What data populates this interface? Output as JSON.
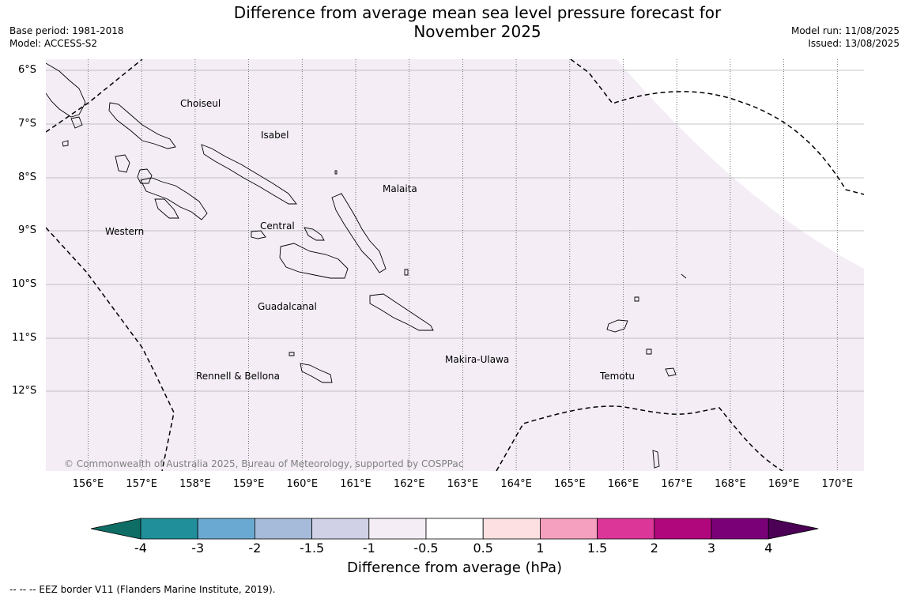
{
  "title": {
    "line1": "Difference from average mean sea level pressure forecast for",
    "line2": "November 2025"
  },
  "meta_left": {
    "base_period": "Base period: 1981-2018",
    "model": "Model: ACCESS-S2"
  },
  "meta_right": {
    "model_run": "Model run: 11/08/2025",
    "issued": "Issued: 13/08/2025"
  },
  "map": {
    "latitude_labels": [
      "6°S",
      "7°S",
      "8°S",
      "9°S",
      "10°S",
      "11°S",
      "12°S"
    ],
    "longitude_labels": [
      "156°E",
      "157°E",
      "158°E",
      "159°E",
      "160°E",
      "161°E",
      "162°E",
      "163°E",
      "164°E",
      "165°E",
      "166°E",
      "167°E",
      "168°E",
      "169°E",
      "170°E"
    ],
    "regions": [
      "Choiseul",
      "Isabel",
      "Malaita",
      "Western",
      "Central",
      "Guadalcanal",
      "Makira-Ulawa",
      "Temotu",
      "Rennell & Bellona"
    ],
    "shaded_category": "-1 to -0.5",
    "copyright": "© Commonwealth of Australia 2025, Bureau of Meteorology, supported by COSPPac"
  },
  "colorbar": {
    "ticks": [
      "-4",
      "-3",
      "-2",
      "-1.5",
      "-1",
      "-0.5",
      "0.5",
      "1",
      "1.5",
      "2",
      "3",
      "4"
    ],
    "label": "Difference from average (hPa)",
    "colors": [
      "#0e6e66",
      "#208f9a",
      "#6aaad2",
      "#a6bada",
      "#d0d0e6",
      "#f4edf6",
      "#ffffff",
      "#fde0e1",
      "#f5a0bf",
      "#dc3698",
      "#b0077c",
      "#7a0078",
      "#4b0055"
    ]
  },
  "footer": "--  --  -- EEZ border V11 (Flanders Marine Institute, 2019)."
}
